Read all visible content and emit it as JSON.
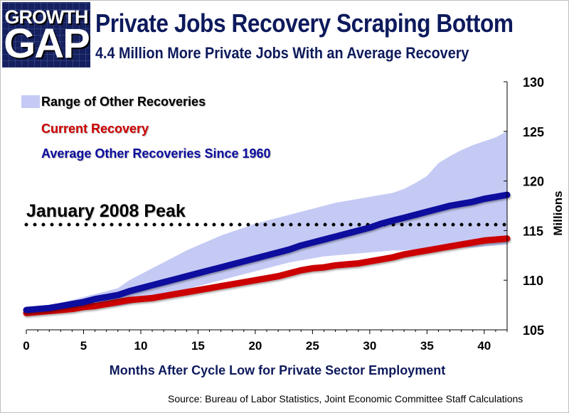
{
  "logo": {
    "line1": "GROWTH",
    "line2": "GAP"
  },
  "title": "Private Jobs Recovery Scraping Bottom",
  "subtitle": "4.4 Million More Private Jobs With an Average Recovery",
  "source": "Source:  Bureau of Labor Statistics, Joint Economic Committee Staff Calculations",
  "colors": {
    "range": "#c5caf4",
    "current": "#cc0000",
    "average": "#10109e",
    "title": "#0d1a5c"
  },
  "chart_data": {
    "type": "line",
    "title": "Private Jobs Recovery Scraping Bottom",
    "subtitle": "4.4 Million More Private Jobs With an Average Recovery",
    "xlabel": "Months After Cycle Low for Private Sector Employment",
    "ylabel": "Millions",
    "xlim": [
      0,
      42
    ],
    "ylim": [
      105,
      130
    ],
    "x_ticks": [
      0,
      5,
      10,
      15,
      20,
      25,
      30,
      35,
      40
    ],
    "y_ticks": [
      105,
      110,
      115,
      120,
      125,
      130
    ],
    "y_axis_side": "right",
    "grid": false,
    "legend_position": "top-left",
    "x": [
      0,
      1,
      2,
      3,
      4,
      5,
      6,
      7,
      8,
      9,
      10,
      11,
      12,
      13,
      14,
      15,
      16,
      17,
      18,
      19,
      20,
      21,
      22,
      23,
      24,
      25,
      26,
      27,
      28,
      29,
      30,
      31,
      32,
      33,
      34,
      35,
      36,
      37,
      38,
      39,
      40,
      41,
      42
    ],
    "series": [
      {
        "name": "Current Recovery",
        "kind": "line",
        "values": [
          106.7,
          106.8,
          106.9,
          107.0,
          107.1,
          107.3,
          107.4,
          107.6,
          107.8,
          108.0,
          108.1,
          108.2,
          108.4,
          108.6,
          108.8,
          109.0,
          109.2,
          109.4,
          109.6,
          109.8,
          110.0,
          110.2,
          110.4,
          110.7,
          111.0,
          111.2,
          111.3,
          111.5,
          111.6,
          111.7,
          111.9,
          112.1,
          112.3,
          112.6,
          112.8,
          113.0,
          113.2,
          113.4,
          113.6,
          113.8,
          114.0,
          114.1,
          114.2
        ]
      },
      {
        "name": "Average Other Recoveries Since 1960",
        "kind": "line",
        "values": [
          107.0,
          107.1,
          107.2,
          107.4,
          107.6,
          107.8,
          108.1,
          108.3,
          108.5,
          108.9,
          109.2,
          109.5,
          109.8,
          110.1,
          110.4,
          110.7,
          111.0,
          111.3,
          111.6,
          111.9,
          112.2,
          112.5,
          112.8,
          113.1,
          113.5,
          113.8,
          114.1,
          114.4,
          114.7,
          115.0,
          115.3,
          115.7,
          116.0,
          116.3,
          116.6,
          116.9,
          117.2,
          117.5,
          117.7,
          117.9,
          118.2,
          118.4,
          118.6
        ]
      },
      {
        "name": "Range of Other Recoveries",
        "kind": "band",
        "lower": [
          106.7,
          106.7,
          106.8,
          106.9,
          107.0,
          107.1,
          107.2,
          107.3,
          107.4,
          107.6,
          107.9,
          108.2,
          108.5,
          108.8,
          109.1,
          109.4,
          109.7,
          110.0,
          110.3,
          110.6,
          110.9,
          111.2,
          111.5,
          111.8,
          112.0,
          112.2,
          112.4,
          112.5,
          112.6,
          112.7,
          112.8,
          112.9,
          113.0,
          113.0,
          113.1,
          113.1,
          113.2,
          113.2,
          113.3,
          113.3,
          113.4,
          113.5,
          113.6
        ],
        "upper": [
          107.0,
          107.2,
          107.4,
          107.7,
          108.0,
          108.3,
          108.6,
          108.9,
          109.2,
          110.0,
          110.6,
          111.2,
          111.8,
          112.4,
          113.0,
          113.5,
          114.0,
          114.5,
          114.9,
          115.3,
          115.7,
          116.0,
          116.3,
          116.6,
          116.9,
          117.2,
          117.5,
          117.8,
          118.0,
          118.2,
          118.4,
          118.6,
          118.8,
          119.2,
          119.8,
          120.5,
          121.8,
          122.5,
          123.1,
          123.6,
          124.0,
          124.4,
          125.0
        ]
      }
    ],
    "reference_line": {
      "label": "January 2008 Peak",
      "value": 115.6,
      "style": "dotted"
    }
  }
}
